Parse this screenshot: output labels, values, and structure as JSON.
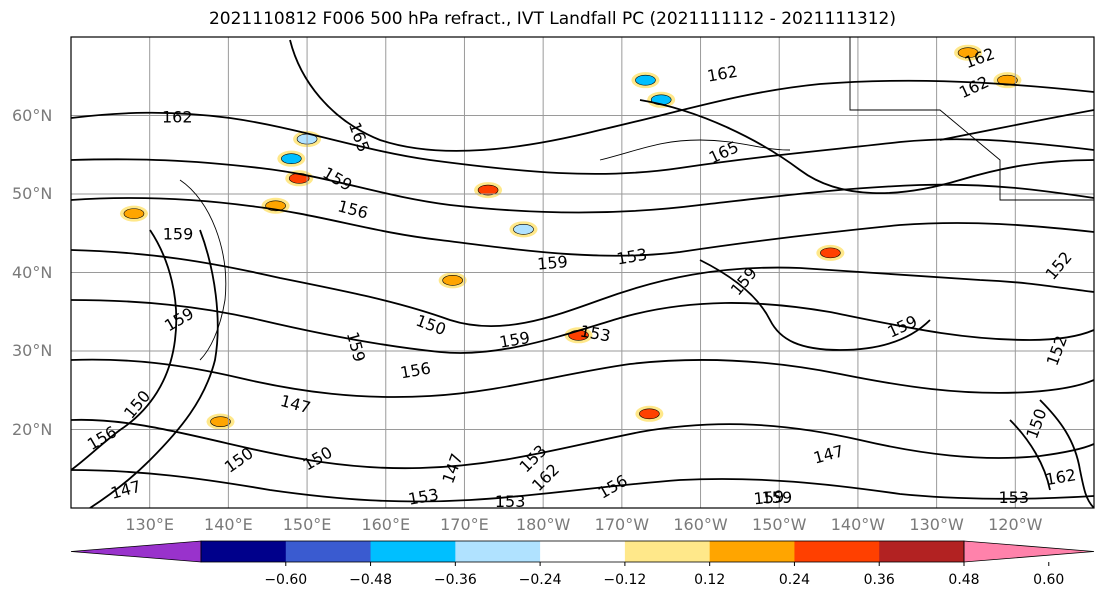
{
  "title": "2021110812 F006 500 hPa refract., IVT Landfall PC (2021111112 - 2021111312)",
  "map": {
    "lon_range_deg_east": [
      120,
      250
    ],
    "lat_range": [
      10,
      70
    ],
    "gridlines": true,
    "lat_ticks": [
      {
        "lat": 60,
        "label": "60°N"
      },
      {
        "lat": 50,
        "label": "50°N"
      },
      {
        "lat": 40,
        "label": "40°N"
      },
      {
        "lat": 30,
        "label": "30°N"
      },
      {
        "lat": 20,
        "label": "20°N"
      }
    ],
    "lon_ticks": [
      {
        "lon": 130,
        "label": "130°E"
      },
      {
        "lon": 140,
        "label": "140°E"
      },
      {
        "lon": 150,
        "label": "150°E"
      },
      {
        "lon": 160,
        "label": "160°E"
      },
      {
        "lon": 170,
        "label": "170°E"
      },
      {
        "lon": 180,
        "label": "180°W"
      },
      {
        "lon": 190,
        "label": "170°W"
      },
      {
        "lon": 200,
        "label": "160°W"
      },
      {
        "lon": 210,
        "label": "150°W"
      },
      {
        "lon": 220,
        "label": "140°W"
      },
      {
        "lon": 230,
        "label": "130°W"
      },
      {
        "lon": 240,
        "label": "120°W"
      }
    ],
    "contour_labels": [
      {
        "text": "162",
        "lon": 133.5,
        "lat": 59.7,
        "rot": 0
      },
      {
        "text": "162",
        "lon": 202.8,
        "lat": 65.2,
        "rot": -10
      },
      {
        "text": "162",
        "lon": 235.5,
        "lat": 67.2,
        "rot": -20
      },
      {
        "text": "162",
        "lon": 234.8,
        "lat": 63.5,
        "rot": -25
      },
      {
        "text": "165",
        "lon": 156.5,
        "lat": 57.2,
        "rot": 70
      },
      {
        "text": "165",
        "lon": 203.0,
        "lat": 55.2,
        "rot": -25
      },
      {
        "text": "159",
        "lon": 153.8,
        "lat": 51.8,
        "rot": 30
      },
      {
        "text": "156",
        "lon": 155.8,
        "lat": 47.9,
        "rot": 15
      },
      {
        "text": "159",
        "lon": 133.6,
        "lat": 44.8,
        "rot": 0
      },
      {
        "text": "159",
        "lon": 181.2,
        "lat": 41.1,
        "rot": -5
      },
      {
        "text": "153",
        "lon": 191.3,
        "lat": 41.9,
        "rot": -10
      },
      {
        "text": "159",
        "lon": 205.6,
        "lat": 38.8,
        "rot": -50
      },
      {
        "text": "152",
        "lon": 245.6,
        "lat": 40.8,
        "rot": -50
      },
      {
        "text": "159",
        "lon": 133.8,
        "lat": 33.9,
        "rot": -30
      },
      {
        "text": "150",
        "lon": 165.7,
        "lat": 33.2,
        "rot": 20
      },
      {
        "text": "159",
        "lon": 176.4,
        "lat": 31.3,
        "rot": -10
      },
      {
        "text": "153",
        "lon": 186.6,
        "lat": 32.1,
        "rot": 10
      },
      {
        "text": "159",
        "lon": 225.7,
        "lat": 33.0,
        "rot": -25
      },
      {
        "text": "159",
        "lon": 156.1,
        "lat": 30.5,
        "rot": 75
      },
      {
        "text": "156",
        "lon": 163.8,
        "lat": 27.4,
        "rot": -10
      },
      {
        "text": "147",
        "lon": 148.5,
        "lat": 23.1,
        "rot": 15
      },
      {
        "text": "150",
        "lon": 128.5,
        "lat": 23.1,
        "rot": -50
      },
      {
        "text": "147",
        "lon": 216.3,
        "lat": 16.7,
        "rot": -15
      },
      {
        "text": "150",
        "lon": 242.8,
        "lat": 20.7,
        "rot": -70
      },
      {
        "text": "152",
        "lon": 245.4,
        "lat": 30.0,
        "rot": -70
      },
      {
        "text": "156",
        "lon": 124.0,
        "lat": 18.8,
        "rot": -30
      },
      {
        "text": "150",
        "lon": 141.4,
        "lat": 16.0,
        "rot": -35
      },
      {
        "text": "150",
        "lon": 151.4,
        "lat": 16.2,
        "rot": -30
      },
      {
        "text": "147",
        "lon": 168.6,
        "lat": 15.0,
        "rot": -70
      },
      {
        "text": "153",
        "lon": 178.8,
        "lat": 16.2,
        "rot": -45
      },
      {
        "text": "162",
        "lon": 180.4,
        "lat": 13.8,
        "rot": -45
      },
      {
        "text": "156",
        "lon": 188.9,
        "lat": 12.6,
        "rot": -30
      },
      {
        "text": "159",
        "lon": 208.7,
        "lat": 11.2,
        "rot": -5
      },
      {
        "text": "159",
        "lon": 209.7,
        "lat": 11.2,
        "rot": 0
      },
      {
        "text": "147",
        "lon": 127.0,
        "lat": 12.2,
        "rot": -15
      },
      {
        "text": "153",
        "lon": 164.8,
        "lat": 11.3,
        "rot": -10
      },
      {
        "text": "153",
        "lon": 175.8,
        "lat": 10.7,
        "rot": 0
      },
      {
        "text": "153",
        "lon": 239.8,
        "lat": 11.2,
        "rot": 0
      },
      {
        "text": "162",
        "lon": 245.8,
        "lat": 13.8,
        "rot": -10
      }
    ],
    "shaded_blobs": [
      {
        "lon": 149.0,
        "lat": 52.0,
        "class": "0.36"
      },
      {
        "lon": 173.0,
        "lat": 50.5,
        "class": "0.36"
      },
      {
        "lon": 216.5,
        "lat": 42.5,
        "class": "0.36"
      },
      {
        "lon": 184.5,
        "lat": 32.0,
        "class": "0.36"
      },
      {
        "lon": 168.5,
        "lat": 39.0,
        "class": "0.24"
      },
      {
        "lon": 193.5,
        "lat": 22.0,
        "class": "0.36"
      },
      {
        "lon": 128.0,
        "lat": 47.5,
        "class": "0.24"
      },
      {
        "lon": 139.0,
        "lat": 21.0,
        "class": "0.24"
      },
      {
        "lon": 146.0,
        "lat": 48.5,
        "class": "0.24"
      },
      {
        "lon": 234.0,
        "lat": 68.0,
        "class": "0.24"
      },
      {
        "lon": 239.0,
        "lat": 64.5,
        "class": "0.24"
      },
      {
        "lon": 148.0,
        "lat": 54.5,
        "class": "-0.36"
      },
      {
        "lon": 193.0,
        "lat": 64.5,
        "class": "-0.36"
      },
      {
        "lon": 177.5,
        "lat": 45.5,
        "class": "-0.24"
      },
      {
        "lon": 195.0,
        "lat": 62.0,
        "class": "-0.36"
      },
      {
        "lon": 150.0,
        "lat": 57.0,
        "class": "-0.24"
      }
    ],
    "contour_paths_note": "isolines of 500 hPa refractivity"
  },
  "colorbar": {
    "colors": [
      "#9932cc",
      "#00008b",
      "#3a5bd0",
      "#00bfff",
      "#b0e2ff",
      "#ffffff",
      "#ffe88a",
      "#ffa500",
      "#ff4000",
      "#b22222",
      "#ff82ab"
    ],
    "tick_labels": [
      "−0.60",
      "−0.48",
      "−0.36",
      "−0.24",
      "−0.12",
      "0.12",
      "0.24",
      "0.36",
      "0.48",
      "0.60"
    ],
    "extend": "both"
  }
}
